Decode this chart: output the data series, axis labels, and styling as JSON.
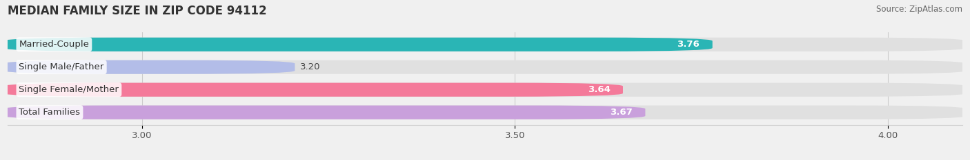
{
  "title": "MEDIAN FAMILY SIZE IN ZIP CODE 94112",
  "source": "Source: ZipAtlas.com",
  "categories": [
    "Total Families",
    "Single Female/Mother",
    "Single Male/Father",
    "Married-Couple"
  ],
  "values": [
    3.67,
    3.64,
    3.2,
    3.76
  ],
  "bar_colors": [
    "#c9a0dc",
    "#f47a9a",
    "#b3bde8",
    "#2ab5b5"
  ],
  "value_text_colors": [
    "white",
    "white",
    "dark",
    "white"
  ],
  "xlim": [
    2.82,
    4.1
  ],
  "xticks": [
    3.0,
    3.5,
    4.0
  ],
  "xtick_labels": [
    "3.00",
    "3.50",
    "4.00"
  ],
  "bar_height": 0.6,
  "label_fontsize": 9.5,
  "value_fontsize": 9.5,
  "title_fontsize": 12,
  "source_fontsize": 8.5,
  "bg_color": "#f0f0f0",
  "bar_bg_color": "#e0e0e0"
}
